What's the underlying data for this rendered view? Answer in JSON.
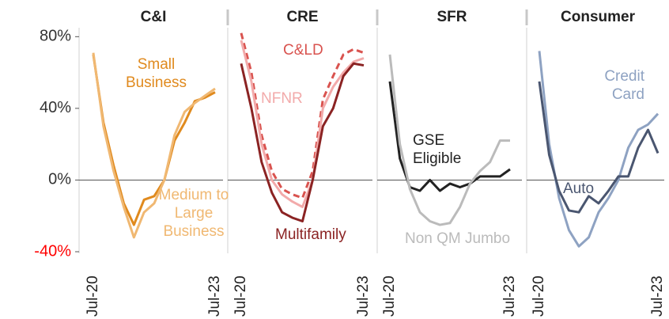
{
  "chart_data": [
    {
      "type": "line",
      "title": "C&I",
      "categories": [
        "Jul-20",
        null,
        null,
        null,
        null,
        null,
        null,
        null,
        null,
        null,
        null,
        null,
        "Jul-23"
      ],
      "ylim": [
        -40,
        85
      ],
      "yticks": [
        {
          "value": -40,
          "label": "-40%"
        },
        {
          "value": 0,
          "label": "0%"
        },
        {
          "value": 40,
          "label": "40%"
        },
        {
          "value": 80,
          "label": "80%"
        }
      ],
      "ytick_label_colors": [
        "#ff0000",
        "#333333",
        "#333333",
        "#333333"
      ],
      "series": [
        {
          "name": "Small Business",
          "color": "#e08a1e",
          "values": [
            70,
            32,
            8,
            -13,
            -25,
            -11,
            -9,
            0,
            22,
            32,
            44,
            46,
            49
          ]
        },
        {
          "name": "Medium to Large Business",
          "color": "#f0b872",
          "values": [
            71,
            30,
            5,
            -15,
            -32,
            -18,
            -13,
            0,
            25,
            38,
            43,
            47,
            51
          ]
        }
      ]
    },
    {
      "type": "line",
      "title": "CRE",
      "categories": [
        "Jul-20",
        null,
        null,
        null,
        null,
        null,
        null,
        null,
        null,
        null,
        null,
        null,
        "Jul-23"
      ],
      "ylim": [
        -40,
        85
      ],
      "series": [
        {
          "name": "C&LD",
          "color": "#d9534f",
          "dashed": true,
          "values": [
            82,
            60,
            25,
            5,
            -5,
            -8,
            -10,
            5,
            45,
            58,
            70,
            73,
            71
          ]
        },
        {
          "name": "NFNR",
          "color": "#f2aaaa",
          "values": [
            78,
            55,
            20,
            0,
            -8,
            -12,
            -15,
            0,
            40,
            52,
            60,
            66,
            68
          ]
        },
        {
          "name": "Multifamily",
          "color": "#8b2323",
          "values": [
            65,
            40,
            10,
            -7,
            -18,
            -21,
            -23,
            0,
            30,
            40,
            58,
            65,
            64
          ]
        }
      ]
    },
    {
      "type": "line",
      "title": "SFR",
      "categories": [
        "Jul-20",
        null,
        null,
        null,
        null,
        null,
        null,
        null,
        null,
        null,
        null,
        null,
        "Jul-23"
      ],
      "ylim": [
        -40,
        85
      ],
      "series": [
        {
          "name": "GSE Eligible",
          "color": "#222222",
          "values": [
            55,
            12,
            -4,
            -6,
            0,
            -6,
            -2,
            -4,
            -2,
            2,
            2,
            2,
            6
          ]
        },
        {
          "name": "Non QM Jumbo",
          "color": "#bbbbbb",
          "values": [
            70,
            20,
            -5,
            -18,
            -23,
            -25,
            -24,
            -15,
            -2,
            5,
            10,
            22,
            22
          ]
        }
      ]
    },
    {
      "type": "line",
      "title": "Consumer",
      "categories": [
        "Jul-20",
        null,
        null,
        null,
        null,
        null,
        null,
        null,
        null,
        null,
        null,
        null,
        "Jul-23"
      ],
      "ylim": [
        -40,
        85
      ],
      "series": [
        {
          "name": "Credit Card",
          "color": "#8ea2c2",
          "values": [
            72,
            20,
            -10,
            -28,
            -37,
            -32,
            -18,
            -10,
            0,
            18,
            28,
            31,
            37
          ]
        },
        {
          "name": "Auto",
          "color": "#4a5670",
          "values": [
            55,
            14,
            -6,
            -17,
            -18,
            -9,
            -13,
            -6,
            2,
            2,
            18,
            28,
            15
          ]
        }
      ]
    }
  ]
}
